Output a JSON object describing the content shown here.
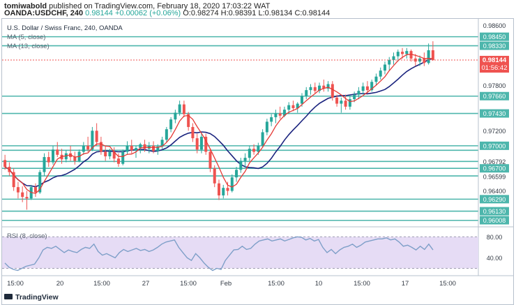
{
  "header": {
    "author": "tomiwabold",
    "published_text": "published on TradingView.com, February 18, 2020 17:03:22 WAT",
    "symbol": "OANDA:USDCHF, 240",
    "last": "0.98144",
    "change": "+0.00062 (+0.06%)",
    "open": "O:0.98274",
    "high": "H:0.98391",
    "low": "L:0.98134",
    "close": "C:0.98144"
  },
  "legend": {
    "title": "U.S. Dollar / Swiss Franc, 240, OANDA",
    "ma5": "MA (5, close)",
    "ma13": "MA (13, close)"
  },
  "price_badge": {
    "value": "0.98144",
    "countdown": "01:56:42"
  },
  "rsi_label": "RSI (8, close)",
  "footer": {
    "brand": "TradingView"
  },
  "colors": {
    "up": "#26a69a",
    "down": "#ef5350",
    "ma5": "#e53935",
    "ma13": "#1a237e",
    "hline": "#4db6ac",
    "rsi_line": "#7e9fc8",
    "rsi_band": "#e6dcf5",
    "badge": "#ef5350"
  },
  "chart_data": {
    "type": "candlestick",
    "y_ticks": [
      0.986,
      0.9845,
      0.9833,
      0.9814,
      0.978,
      0.9766,
      0.9743,
      0.972,
      0.97,
      0.9679,
      0.967,
      0.9659,
      0.964,
      0.9629,
      0.9613,
      0.9601
    ],
    "y_tick_labels": [
      "0.98600",
      "0.98450",
      "0.98330",
      "0.98144",
      "0.97800",
      "0.97660",
      "0.97430",
      "0.97200",
      "0.97000",
      "0.96792",
      "0.96700",
      "0.96599",
      "0.96400",
      "0.96290",
      "0.96130",
      "0.96008"
    ],
    "levels": [
      0.9845,
      0.9833,
      0.9766,
      0.9743,
      0.97,
      0.9694,
      0.96792,
      0.967,
      0.96599,
      0.9629,
      0.9613,
      0.96008
    ],
    "x_labels": [
      "15:00",
      "20",
      "15:00",
      "27",
      "15:00",
      "Feb",
      "15:00",
      "10",
      "15:00",
      "17",
      "15:00"
    ],
    "ylim": [
      0.9595,
      0.9866
    ],
    "candles": [
      [
        0.9681,
        0.9688,
        0.9668,
        0.9672
      ],
      [
        0.9672,
        0.9678,
        0.966,
        0.9665
      ],
      [
        0.9665,
        0.967,
        0.964,
        0.9645
      ],
      [
        0.9645,
        0.9652,
        0.963,
        0.9638
      ],
      [
        0.9638,
        0.9646,
        0.9625,
        0.9632
      ],
      [
        0.9632,
        0.964,
        0.9615,
        0.963
      ],
      [
        0.963,
        0.9648,
        0.9628,
        0.9645
      ],
      [
        0.9645,
        0.965,
        0.9632,
        0.9638
      ],
      [
        0.9638,
        0.9668,
        0.9636,
        0.9665
      ],
      [
        0.9665,
        0.969,
        0.966,
        0.9685
      ],
      [
        0.9685,
        0.9692,
        0.9672,
        0.9678
      ],
      [
        0.9678,
        0.97,
        0.9675,
        0.9695
      ],
      [
        0.9695,
        0.9705,
        0.9685,
        0.9688
      ],
      [
        0.9688,
        0.9696,
        0.9676,
        0.9682
      ],
      [
        0.9682,
        0.9694,
        0.9678,
        0.969
      ],
      [
        0.969,
        0.97,
        0.968,
        0.9685
      ],
      [
        0.9685,
        0.9692,
        0.9675,
        0.968
      ],
      [
        0.968,
        0.9695,
        0.9678,
        0.9692
      ],
      [
        0.9692,
        0.9705,
        0.9688,
        0.97
      ],
      [
        0.97,
        0.9712,
        0.9692,
        0.9695
      ],
      [
        0.9695,
        0.9725,
        0.9693,
        0.972
      ],
      [
        0.972,
        0.973,
        0.97,
        0.9705
      ],
      [
        0.9705,
        0.9712,
        0.9688,
        0.9692
      ],
      [
        0.9692,
        0.97,
        0.968,
        0.9686
      ],
      [
        0.9686,
        0.9696,
        0.9682,
        0.9692
      ],
      [
        0.9692,
        0.9698,
        0.9678,
        0.9683
      ],
      [
        0.9683,
        0.969,
        0.9672,
        0.9676
      ],
      [
        0.9676,
        0.9695,
        0.9674,
        0.9692
      ],
      [
        0.9692,
        0.9706,
        0.9688,
        0.97
      ],
      [
        0.97,
        0.9708,
        0.969,
        0.9694
      ],
      [
        0.9694,
        0.97,
        0.9684,
        0.9697
      ],
      [
        0.9697,
        0.9704,
        0.969,
        0.9702
      ],
      [
        0.9702,
        0.9708,
        0.9692,
        0.9696
      ],
      [
        0.9696,
        0.9705,
        0.969,
        0.97
      ],
      [
        0.97,
        0.9706,
        0.969,
        0.9693
      ],
      [
        0.9693,
        0.9702,
        0.9688,
        0.9699
      ],
      [
        0.9699,
        0.9712,
        0.9696,
        0.9708
      ],
      [
        0.9708,
        0.9725,
        0.9705,
        0.9722
      ],
      [
        0.9722,
        0.9738,
        0.9718,
        0.9735
      ],
      [
        0.9735,
        0.9748,
        0.973,
        0.9744
      ],
      [
        0.9744,
        0.976,
        0.974,
        0.9755
      ],
      [
        0.9755,
        0.976,
        0.9738,
        0.9742
      ],
      [
        0.9742,
        0.9745,
        0.972,
        0.9725
      ],
      [
        0.9725,
        0.973,
        0.9705,
        0.971
      ],
      [
        0.971,
        0.9716,
        0.969,
        0.9695
      ],
      [
        0.9695,
        0.9718,
        0.969,
        0.9712
      ],
      [
        0.9712,
        0.9716,
        0.9688,
        0.9692
      ],
      [
        0.9692,
        0.9696,
        0.9665,
        0.967
      ],
      [
        0.967,
        0.9674,
        0.9645,
        0.965
      ],
      [
        0.965,
        0.9655,
        0.9628,
        0.9634
      ],
      [
        0.9634,
        0.9648,
        0.963,
        0.9644
      ],
      [
        0.9644,
        0.9652,
        0.9634,
        0.964
      ],
      [
        0.964,
        0.9662,
        0.9638,
        0.9658
      ],
      [
        0.9658,
        0.9672,
        0.9652,
        0.9668
      ],
      [
        0.9668,
        0.9684,
        0.9664,
        0.968
      ],
      [
        0.968,
        0.969,
        0.9672,
        0.9684
      ],
      [
        0.9684,
        0.97,
        0.968,
        0.9696
      ],
      [
        0.9696,
        0.9702,
        0.9688,
        0.9692
      ],
      [
        0.9692,
        0.9704,
        0.9688,
        0.97
      ],
      [
        0.97,
        0.9722,
        0.9698,
        0.9718
      ],
      [
        0.9718,
        0.9736,
        0.9714,
        0.9732
      ],
      [
        0.9732,
        0.9742,
        0.9726,
        0.9738
      ],
      [
        0.9738,
        0.9748,
        0.973,
        0.9743
      ],
      [
        0.9743,
        0.9752,
        0.9736,
        0.974
      ],
      [
        0.974,
        0.9752,
        0.9738,
        0.9748
      ],
      [
        0.9748,
        0.9758,
        0.9742,
        0.9754
      ],
      [
        0.9754,
        0.976,
        0.9746,
        0.975
      ],
      [
        0.975,
        0.9758,
        0.9744,
        0.9756
      ],
      [
        0.9756,
        0.977,
        0.9752,
        0.9766
      ],
      [
        0.9766,
        0.9778,
        0.9762,
        0.9774
      ],
      [
        0.9774,
        0.9782,
        0.9768,
        0.9778
      ],
      [
        0.9778,
        0.9784,
        0.977,
        0.9773
      ],
      [
        0.9773,
        0.9784,
        0.977,
        0.978
      ],
      [
        0.978,
        0.9788,
        0.9772,
        0.9776
      ],
      [
        0.9776,
        0.9786,
        0.9772,
        0.9782
      ],
      [
        0.9782,
        0.9786,
        0.976,
        0.9764
      ],
      [
        0.9764,
        0.9768,
        0.9752,
        0.9756
      ],
      [
        0.9756,
        0.9764,
        0.9744,
        0.976
      ],
      [
        0.976,
        0.9768,
        0.9748,
        0.9752
      ],
      [
        0.9752,
        0.9766,
        0.9748,
        0.9762
      ],
      [
        0.9762,
        0.9772,
        0.9758,
        0.9768
      ],
      [
        0.9768,
        0.9778,
        0.9762,
        0.9773
      ],
      [
        0.9773,
        0.9784,
        0.9768,
        0.9779
      ],
      [
        0.9779,
        0.9786,
        0.977,
        0.9774
      ],
      [
        0.9774,
        0.9788,
        0.9772,
        0.9785
      ],
      [
        0.9785,
        0.9796,
        0.978,
        0.9792
      ],
      [
        0.9792,
        0.9804,
        0.9788,
        0.98
      ],
      [
        0.98,
        0.9812,
        0.9795,
        0.9808
      ],
      [
        0.9808,
        0.9818,
        0.98,
        0.9814
      ],
      [
        0.9814,
        0.9824,
        0.9808,
        0.9819
      ],
      [
        0.9819,
        0.9828,
        0.9812,
        0.9825
      ],
      [
        0.9825,
        0.983,
        0.9816,
        0.9822
      ],
      [
        0.9822,
        0.983,
        0.9816,
        0.9826
      ],
      [
        0.9826,
        0.9828,
        0.9812,
        0.9816
      ],
      [
        0.9816,
        0.9822,
        0.9806,
        0.9812
      ],
      [
        0.9812,
        0.982,
        0.9806,
        0.9816
      ],
      [
        0.9816,
        0.9824,
        0.9806,
        0.981
      ],
      [
        0.981,
        0.9836,
        0.9808,
        0.9827
      ],
      [
        0.9827,
        0.9839,
        0.9813,
        0.9814
      ]
    ],
    "rsi": {
      "levels": [
        80,
        40
      ],
      "tick_labels": [
        "80.00",
        "40.00"
      ],
      "ylim": [
        10,
        95
      ],
      "values": [
        30,
        22,
        18,
        16,
        20,
        24,
        26,
        28,
        40,
        55,
        60,
        58,
        62,
        56,
        50,
        55,
        52,
        50,
        56,
        60,
        58,
        66,
        52,
        45,
        48,
        44,
        40,
        50,
        56,
        52,
        55,
        58,
        54,
        56,
        52,
        55,
        60,
        66,
        70,
        72,
        74,
        60,
        50,
        40,
        35,
        48,
        40,
        30,
        22,
        16,
        20,
        18,
        35,
        45,
        55,
        56,
        62,
        56,
        58,
        66,
        72,
        74,
        76,
        72,
        74,
        76,
        72,
        75,
        78,
        80,
        79,
        74,
        77,
        72,
        75,
        60,
        50,
        56,
        48,
        55,
        60,
        62,
        66,
        60,
        64,
        70,
        72,
        74,
        76,
        76,
        78,
        74,
        76,
        70,
        62,
        64,
        60,
        55,
        62,
        56,
        66,
        55
      ]
    }
  }
}
